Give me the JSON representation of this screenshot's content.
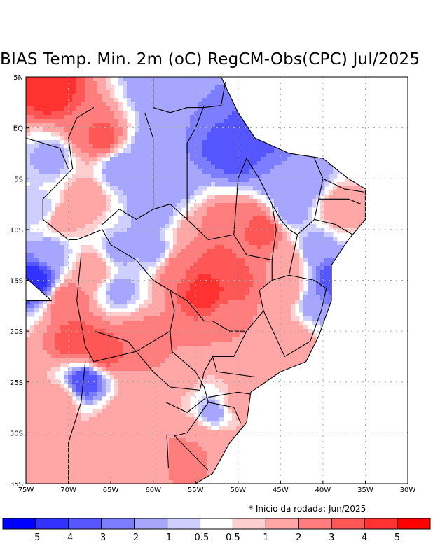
{
  "title": "BIAS Temp. Min. 2m (oC) RegCM-Obs(CPC) Jul/2025",
  "note": "* Inicio da rodada: Jun/2025",
  "map": {
    "lon_range": [
      -75,
      -30
    ],
    "lat_range": [
      -35,
      5
    ],
    "x_ticks": [
      {
        "value": -75,
        "label": "75W"
      },
      {
        "value": -70,
        "label": "70W"
      },
      {
        "value": -65,
        "label": "65W"
      },
      {
        "value": -60,
        "label": "60W"
      },
      {
        "value": -55,
        "label": "55W"
      },
      {
        "value": -50,
        "label": "50W"
      },
      {
        "value": -45,
        "label": "45W"
      },
      {
        "value": -40,
        "label": "40W"
      },
      {
        "value": -35,
        "label": "35W"
      },
      {
        "value": -30,
        "label": "30W"
      }
    ],
    "y_ticks": [
      {
        "value": 5,
        "label": "5N"
      },
      {
        "value": 0,
        "label": "EQ"
      },
      {
        "value": -5,
        "label": "5S"
      },
      {
        "value": -10,
        "label": "10S"
      },
      {
        "value": -15,
        "label": "15S"
      },
      {
        "value": -20,
        "label": "20S"
      },
      {
        "value": -25,
        "label": "25S"
      },
      {
        "value": -30,
        "label": "30S"
      },
      {
        "value": -35,
        "label": "35S"
      }
    ],
    "grid": "dotted",
    "blobs": [
      {
        "lon": -72,
        "lat": 3.5,
        "v": 5
      },
      {
        "lon": -68,
        "lat": 0,
        "v": 3
      },
      {
        "lon": -66,
        "lat": -1,
        "v": 3.5
      },
      {
        "lon": -64,
        "lat": -4,
        "v": -2
      },
      {
        "lon": -60,
        "lat": -2,
        "v": -2
      },
      {
        "lon": -57,
        "lat": 1.5,
        "v": -2
      },
      {
        "lon": -52,
        "lat": -2,
        "v": -3.5
      },
      {
        "lon": -50,
        "lat": -3,
        "v": -4
      },
      {
        "lon": -48,
        "lat": -1,
        "v": -4
      },
      {
        "lon": -46,
        "lat": -5,
        "v": -2
      },
      {
        "lon": -42,
        "lat": -5,
        "v": -2
      },
      {
        "lon": -60,
        "lat": 4,
        "v": -2
      },
      {
        "lon": -72,
        "lat": -3,
        "v": -1.5
      },
      {
        "lon": -73,
        "lat": -8,
        "v": -1
      },
      {
        "lon": -71,
        "lat": -9,
        "v": 2
      },
      {
        "lon": -68,
        "lat": -7,
        "v": 2
      },
      {
        "lon": -60,
        "lat": -8,
        "v": -2
      },
      {
        "lon": -57,
        "lat": -5,
        "v": -2
      },
      {
        "lon": -55,
        "lat": -11,
        "v": 2
      },
      {
        "lon": -52,
        "lat": -9,
        "v": 2.5
      },
      {
        "lon": -49,
        "lat": -9,
        "v": 3
      },
      {
        "lon": -47,
        "lat": -10,
        "v": 4
      },
      {
        "lon": -53,
        "lat": -13,
        "v": 3.5
      },
      {
        "lon": -54,
        "lat": -16,
        "v": 5
      },
      {
        "lon": -51,
        "lat": -15,
        "v": 4
      },
      {
        "lon": -57,
        "lat": -14,
        "v": 3
      },
      {
        "lon": -60,
        "lat": -12,
        "v": -1.5
      },
      {
        "lon": -64,
        "lat": -12,
        "v": -1.5
      },
      {
        "lon": -64,
        "lat": -16,
        "v": -1.5
      },
      {
        "lon": -67,
        "lat": -14,
        "v": 2
      },
      {
        "lon": -70,
        "lat": -17,
        "v": 3
      },
      {
        "lon": -69,
        "lat": -21,
        "v": 4
      },
      {
        "lon": -66,
        "lat": -22,
        "v": 4
      },
      {
        "lon": -72,
        "lat": -12,
        "v": -1.5
      },
      {
        "lon": -74,
        "lat": -15,
        "v": -5
      },
      {
        "lon": -62,
        "lat": -21,
        "v": 3
      },
      {
        "lon": -58,
        "lat": -23,
        "v": 2
      },
      {
        "lon": -51,
        "lat": -19,
        "v": 2
      },
      {
        "lon": -44,
        "lat": -16,
        "v": 2
      },
      {
        "lon": -41,
        "lat": -17,
        "v": -2
      },
      {
        "lon": -39,
        "lat": -15,
        "v": -4
      },
      {
        "lon": -41,
        "lat": -12,
        "v": -2
      },
      {
        "lon": -44,
        "lat": -8,
        "v": -2
      },
      {
        "lon": -38,
        "lat": -8,
        "v": 2
      },
      {
        "lon": -44,
        "lat": -13,
        "v": 2
      },
      {
        "lon": -44,
        "lat": -21,
        "v": 2
      },
      {
        "lon": -48,
        "lat": -22,
        "v": 2
      },
      {
        "lon": -68,
        "lat": -25,
        "v": -4
      },
      {
        "lon": -71,
        "lat": -27,
        "v": 2
      },
      {
        "lon": -64,
        "lat": -29,
        "v": 2
      },
      {
        "lon": -60,
        "lat": -27,
        "v": 1.5
      },
      {
        "lon": -55,
        "lat": -30,
        "v": 1.5
      },
      {
        "lon": -53,
        "lat": -28,
        "v": -1.5
      },
      {
        "lon": -56,
        "lat": -32,
        "v": 3
      },
      {
        "lon": -52,
        "lat": -31,
        "v": 1.5
      },
      {
        "lon": -66,
        "lat": -33,
        "v": 2
      },
      {
        "lon": -70,
        "lat": -33,
        "v": 1.5
      },
      {
        "lon": -61,
        "lat": -32,
        "v": 1
      },
      {
        "lon": -50,
        "lat": -27,
        "v": 1.5
      }
    ]
  },
  "colorbar": {
    "bins": [
      {
        "color": "#0000ff"
      },
      {
        "color": "#3232ff"
      },
      {
        "color": "#5656ff"
      },
      {
        "color": "#7d7dff"
      },
      {
        "color": "#a6a6ff"
      },
      {
        "color": "#cfcfff"
      },
      {
        "color": "#ffffff"
      },
      {
        "color": "#ffcfcf"
      },
      {
        "color": "#ffa6a6"
      },
      {
        "color": "#ff7d7d"
      },
      {
        "color": "#ff5656"
      },
      {
        "color": "#ff3232"
      },
      {
        "color": "#ff0000"
      }
    ],
    "labels": [
      "-5",
      "-4",
      "-3",
      "-2",
      "-1",
      "-0.5",
      "0.5",
      "1",
      "2",
      "3",
      "4",
      "5"
    ],
    "thresholds": [
      -5,
      -4,
      -3,
      -2,
      -1,
      -0.5,
      0.5,
      1,
      2,
      3,
      4,
      5
    ]
  }
}
